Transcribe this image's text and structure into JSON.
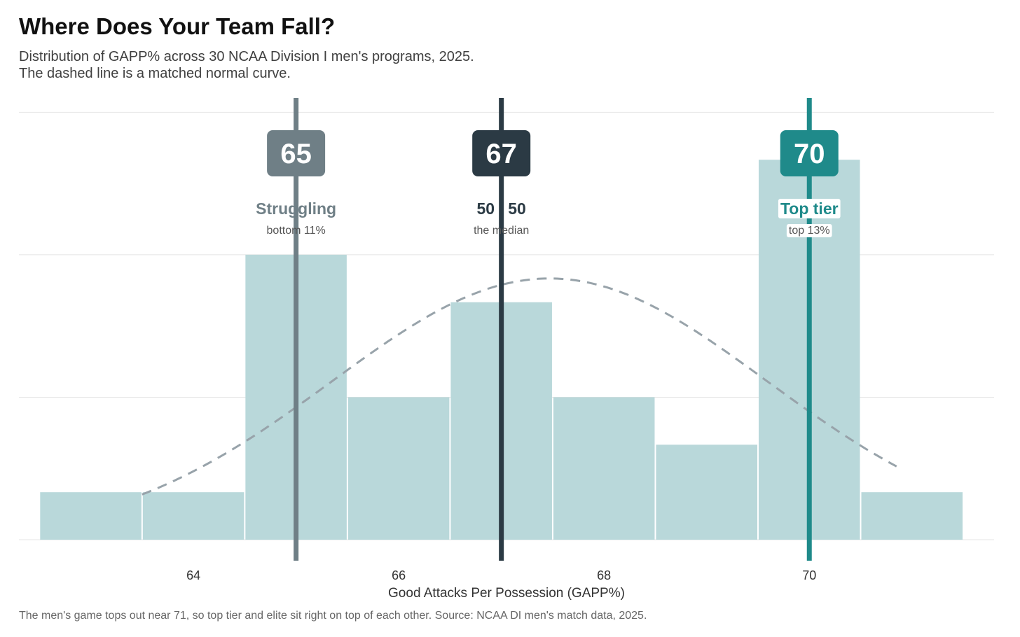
{
  "title": "Where Does Your Team Fall?",
  "subtitle_line1": "Distribution of GAPP% across 30 NCAA Division I men's programs, 2025.",
  "subtitle_line2": "The dashed line is a matched normal curve.",
  "caption": "The men's game tops out near 71, so top tier and elite sit right on top of each other. Source: NCAA DI men's match data, 2025.",
  "colors": {
    "bar_fill": "#b9d8da",
    "curve": "#98a3aa",
    "grid": "#e4e4e4",
    "struggling": "#6f7f86",
    "median": "#2b3a44",
    "top_tier": "#1f8a8a"
  },
  "chart_data": {
    "type": "bar",
    "subtype": "histogram",
    "xlabel": "Good Attacks Per Possession (GAPP%)",
    "ylabel": "",
    "xlim": [
      62.3,
      71.8
    ],
    "ylim": [
      0,
      9.3
    ],
    "xticks": [
      64,
      66,
      68,
      70
    ],
    "y_gridlines": [
      0,
      3,
      6,
      9
    ],
    "y_tick_labels_shown": false,
    "bin_width": 1,
    "bins": [
      {
        "start": 62.5,
        "end": 63.5,
        "count": 1
      },
      {
        "start": 63.5,
        "end": 64.5,
        "count": 1
      },
      {
        "start": 64.5,
        "end": 65.5,
        "count": 6
      },
      {
        "start": 65.5,
        "end": 66.5,
        "count": 3
      },
      {
        "start": 66.5,
        "end": 67.5,
        "count": 5
      },
      {
        "start": 67.5,
        "end": 68.5,
        "count": 3
      },
      {
        "start": 68.5,
        "end": 69.5,
        "count": 2
      },
      {
        "start": 69.5,
        "end": 70.5,
        "count": 8
      },
      {
        "start": 70.5,
        "end": 71.5,
        "count": 1
      }
    ],
    "normal_curve": {
      "style": "dashed",
      "mean": 67.47,
      "sd": 2.12,
      "peak_count": 5.5,
      "x_range": [
        63.5,
        70.85
      ]
    },
    "markers": [
      {
        "key": "struggling",
        "x": 65,
        "badge": "65",
        "label": "Struggling",
        "sublabel": "bottom 11%"
      },
      {
        "key": "median",
        "x": 67,
        "badge": "67",
        "label": "50 / 50",
        "sublabel": "the median"
      },
      {
        "key": "top_tier",
        "x": 70,
        "badge": "70",
        "label": "Top tier",
        "sublabel": "top 13%"
      }
    ],
    "grid": true,
    "legend": "none"
  }
}
